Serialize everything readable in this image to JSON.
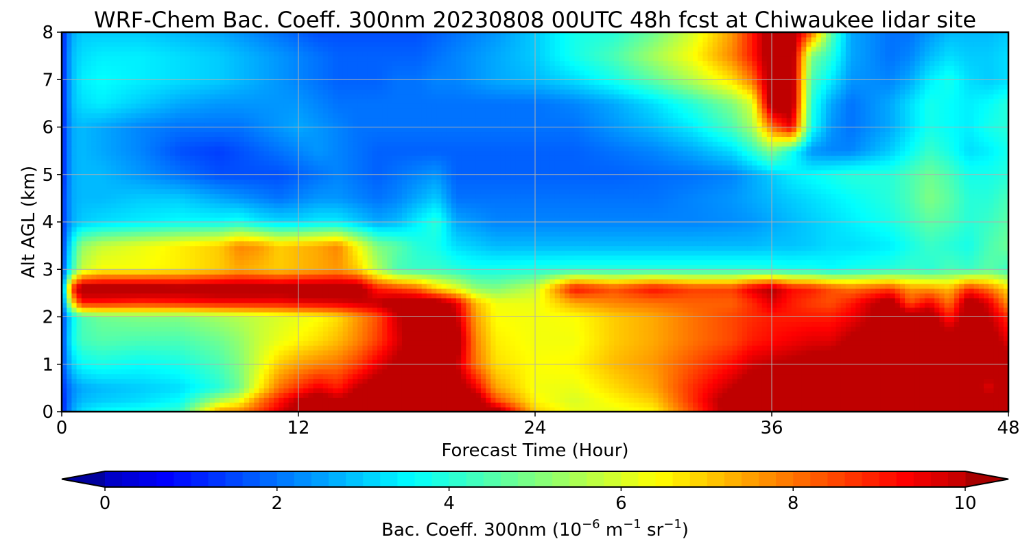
{
  "chart_data": {
    "type": "heatmap",
    "title": "WRF-Chem Bac. Coeff. 300nm  20230808 00UTC 48h fcst at Chiwaukee lidar site",
    "xlabel": "Forecast Time (Hour)",
    "ylabel": "Alt AGL (km)",
    "xlim": [
      0,
      48
    ],
    "ylim": [
      0,
      8
    ],
    "x_ticks": [
      "0",
      "12",
      "24",
      "36",
      "48"
    ],
    "y_ticks": [
      "0",
      "1",
      "2",
      "3",
      "4",
      "5",
      "6",
      "7",
      "8"
    ],
    "grid": true,
    "colormap": "jet",
    "colorbar": {
      "label_main": "Bac. Coeff. 300nm  (10",
      "label_exp1": "−6",
      "label_mid": " m",
      "label_exp2": "−1",
      "label_mid2": " sr",
      "label_exp3": "−1",
      "label_end": ")",
      "range": [
        0,
        10
      ],
      "ticks": [
        "0",
        "2",
        "4",
        "6",
        "8",
        "10"
      ],
      "extend": "both",
      "orientation": "horizontal"
    },
    "x_hours": [
      0,
      0.5,
      1,
      2,
      4,
      6,
      8,
      9,
      10,
      11,
      12,
      13,
      14,
      15,
      16,
      17,
      18,
      19,
      20,
      21,
      22,
      24,
      26,
      28,
      30,
      32,
      34,
      35,
      36,
      37,
      38,
      39,
      40,
      42,
      43,
      44,
      45,
      46,
      47,
      48
    ],
    "y_km": [
      0,
      0.25,
      0.5,
      1,
      1.5,
      2,
      2.3,
      2.6,
      3,
      3.5,
      4,
      4.5,
      5,
      5.5,
      6,
      6.5,
      7,
      7.5,
      8
    ],
    "values_rows_by_altitude": [
      [
        1.0,
        2.5,
        3.2,
        3.6,
        3.8,
        4.2,
        7.6,
        7.8,
        8.6,
        9.6,
        10.6,
        10.6,
        10.5,
        10.6,
        10.6,
        10.6,
        10.6,
        10.6,
        10.6,
        10.6,
        10.6,
        7.0,
        6.2,
        6.2,
        6.5,
        8.5,
        10.6,
        10.6,
        10.6,
        10.6,
        10.6,
        10.6,
        10.6,
        10.6,
        10.6,
        10.6,
        10.6,
        10.6,
        10.6,
        10.6
      ],
      [
        1.0,
        2.3,
        2.8,
        3.0,
        3.2,
        3.6,
        5.5,
        6.2,
        7.8,
        9.0,
        10.0,
        10.6,
        10.0,
        10.6,
        10.6,
        10.6,
        10.6,
        10.6,
        10.6,
        10.6,
        8.5,
        6.5,
        6.0,
        6.5,
        7.0,
        8.8,
        10.6,
        10.6,
        10.6,
        10.6,
        10.6,
        10.6,
        10.6,
        10.6,
        10.6,
        10.6,
        10.6,
        10.6,
        10.6,
        10.6
      ],
      [
        1.2,
        2.2,
        2.6,
        2.8,
        3.0,
        3.2,
        4.0,
        4.8,
        6.5,
        8.0,
        8.8,
        9.5,
        9.0,
        10.0,
        10.6,
        10.6,
        10.6,
        10.6,
        10.6,
        9.5,
        7.5,
        6.3,
        6.2,
        6.8,
        7.4,
        8.8,
        10.0,
        10.6,
        10.6,
        10.6,
        10.6,
        10.6,
        10.6,
        10.6,
        10.6,
        10.6,
        10.6,
        10.6,
        9.5,
        10.6
      ],
      [
        1.5,
        3.0,
        3.6,
        3.8,
        3.6,
        3.8,
        4.4,
        5.0,
        6.0,
        7.0,
        7.5,
        7.8,
        8.0,
        8.6,
        9.5,
        10.2,
        10.6,
        10.6,
        10.0,
        8.0,
        6.8,
        6.4,
        6.5,
        7.2,
        7.6,
        8.4,
        9.2,
        9.8,
        10.0,
        10.2,
        10.4,
        10.6,
        10.6,
        10.6,
        10.6,
        10.6,
        10.6,
        10.6,
        10.6,
        10.6
      ],
      [
        1.4,
        3.6,
        4.3,
        4.5,
        4.4,
        4.4,
        4.8,
        5.2,
        5.8,
        6.2,
        6.5,
        6.8,
        7.2,
        7.8,
        8.6,
        9.6,
        10.6,
        10.6,
        10.6,
        7.8,
        6.6,
        6.3,
        6.3,
        7.0,
        7.4,
        8.0,
        8.5,
        9.0,
        9.2,
        9.4,
        9.6,
        9.6,
        10.2,
        10.6,
        10.6,
        10.6,
        10.6,
        10.6,
        10.6,
        9.5
      ],
      [
        1.4,
        3.4,
        4.4,
        4.8,
        5.0,
        5.0,
        5.4,
        5.6,
        5.8,
        6.0,
        6.2,
        6.4,
        6.8,
        7.6,
        8.4,
        9.8,
        10.6,
        10.6,
        10.0,
        7.5,
        6.4,
        6.3,
        6.4,
        7.0,
        7.4,
        8.0,
        8.5,
        8.8,
        9.0,
        9.0,
        9.0,
        9.0,
        9.4,
        10.6,
        10.6,
        10.6,
        9.0,
        10.6,
        10.0,
        8.8
      ],
      [
        1.6,
        6.5,
        9.0,
        9.0,
        8.8,
        9.0,
        9.2,
        9.2,
        9.2,
        9.2,
        9.4,
        9.5,
        9.6,
        9.8,
        10.0,
        10.6,
        10.6,
        10.6,
        9.6,
        7.2,
        6.3,
        6.2,
        7.4,
        7.8,
        8.0,
        8.2,
        8.2,
        8.8,
        9.6,
        9.0,
        8.6,
        8.4,
        9.0,
        10.6,
        8.4,
        9.4,
        8.0,
        10.6,
        9.6,
        7.6
      ],
      [
        1.8,
        8.5,
        10.6,
        10.6,
        10.6,
        10.4,
        10.6,
        10.6,
        10.6,
        10.5,
        10.6,
        10.6,
        10.6,
        10.6,
        9.0,
        8.6,
        8.2,
        7.0,
        6.2,
        5.2,
        5.0,
        5.8,
        9.2,
        8.4,
        9.2,
        8.6,
        8.6,
        9.6,
        10.2,
        9.2,
        9.0,
        8.4,
        8.0,
        8.6,
        7.6,
        7.6,
        7.2,
        8.8,
        8.0,
        6.8
      ],
      [
        1.4,
        4.0,
        5.8,
        6.4,
        6.4,
        6.6,
        7.0,
        7.4,
        7.2,
        7.0,
        7.2,
        7.4,
        7.6,
        7.0,
        5.6,
        4.4,
        4.2,
        4.2,
        4.0,
        3.8,
        3.8,
        3.9,
        4.0,
        4.0,
        4.0,
        4.0,
        4.0,
        4.0,
        3.9,
        3.8,
        3.8,
        3.6,
        3.8,
        4.0,
        4.2,
        4.0,
        4.4,
        4.2,
        4.6,
        4.2
      ],
      [
        1.2,
        3.6,
        5.2,
        5.8,
        6.2,
        6.6,
        7.0,
        7.8,
        7.6,
        7.0,
        7.2,
        7.4,
        7.8,
        6.4,
        5.0,
        4.6,
        4.0,
        3.8,
        3.2,
        3.0,
        2.8,
        2.8,
        2.8,
        2.8,
        2.8,
        2.8,
        2.8,
        2.8,
        2.9,
        2.9,
        3.0,
        3.2,
        3.2,
        3.4,
        3.8,
        4.2,
        4.0,
        3.8,
        4.4,
        4.8
      ],
      [
        1.2,
        2.6,
        3.0,
        3.2,
        3.4,
        3.6,
        3.6,
        3.8,
        3.4,
        3.2,
        3.2,
        3.4,
        3.4,
        3.0,
        2.6,
        2.8,
        3.4,
        4.0,
        2.6,
        2.4,
        2.2,
        2.2,
        2.2,
        2.2,
        2.2,
        2.2,
        2.3,
        2.4,
        2.6,
        2.8,
        3.0,
        3.2,
        3.4,
        3.8,
        4.2,
        4.6,
        4.4,
        4.0,
        4.2,
        4.6
      ],
      [
        1.2,
        2.6,
        2.8,
        2.8,
        3.0,
        3.0,
        2.6,
        2.4,
        2.2,
        2.0,
        2.2,
        2.4,
        2.4,
        2.2,
        2.0,
        2.2,
        2.6,
        3.0,
        2.0,
        2.0,
        2.0,
        2.0,
        2.0,
        2.0,
        2.0,
        2.2,
        2.4,
        2.6,
        2.8,
        3.0,
        3.2,
        3.4,
        3.6,
        4.0,
        4.4,
        5.0,
        4.6,
        4.0,
        4.0,
        4.4
      ],
      [
        1.0,
        2.6,
        2.8,
        2.8,
        2.4,
        2.0,
        1.6,
        1.6,
        1.6,
        1.6,
        1.8,
        2.0,
        2.2,
        2.0,
        1.8,
        2.0,
        2.2,
        2.4,
        1.8,
        1.8,
        1.8,
        1.8,
        1.8,
        1.8,
        1.9,
        2.0,
        2.2,
        2.6,
        3.0,
        3.4,
        3.6,
        3.8,
        4.0,
        4.0,
        4.4,
        4.8,
        4.4,
        3.8,
        3.8,
        4.0
      ],
      [
        1.0,
        2.6,
        2.8,
        2.6,
        2.2,
        1.6,
        1.4,
        1.6,
        1.8,
        2.0,
        2.2,
        2.4,
        2.2,
        2.0,
        1.8,
        1.8,
        1.8,
        1.8,
        1.8,
        1.8,
        1.8,
        1.8,
        1.8,
        2.0,
        2.2,
        2.6,
        3.2,
        4.0,
        5.0,
        3.8,
        2.4,
        2.2,
        2.2,
        3.0,
        3.6,
        4.2,
        3.8,
        3.2,
        3.4,
        3.8
      ],
      [
        1.0,
        2.6,
        2.8,
        2.6,
        2.2,
        2.0,
        2.0,
        2.0,
        2.2,
        2.4,
        2.6,
        2.4,
        2.2,
        2.0,
        2.0,
        2.0,
        2.0,
        2.0,
        2.0,
        2.0,
        2.0,
        2.0,
        2.0,
        2.4,
        2.8,
        3.4,
        4.4,
        5.4,
        8.0,
        9.5,
        3.8,
        2.4,
        2.0,
        2.6,
        3.2,
        3.8,
        3.6,
        3.4,
        3.8,
        4.0
      ],
      [
        1.0,
        2.8,
        3.2,
        3.4,
        3.0,
        2.6,
        2.4,
        2.4,
        2.4,
        2.4,
        2.4,
        2.2,
        2.0,
        2.0,
        2.0,
        2.0,
        2.0,
        2.0,
        2.0,
        2.0,
        2.0,
        2.0,
        2.2,
        2.6,
        3.2,
        4.0,
        5.0,
        6.0,
        10.6,
        10.6,
        4.0,
        2.6,
        2.0,
        2.6,
        3.2,
        3.8,
        3.6,
        3.4,
        3.6,
        4.0
      ],
      [
        1.0,
        2.8,
        3.4,
        3.6,
        3.4,
        3.2,
        3.0,
        2.8,
        2.6,
        2.4,
        2.2,
        2.0,
        1.8,
        1.8,
        1.8,
        2.0,
        2.0,
        2.2,
        2.2,
        2.4,
        2.6,
        2.8,
        3.2,
        3.8,
        4.6,
        5.6,
        6.8,
        8.0,
        10.6,
        10.6,
        4.4,
        3.4,
        2.4,
        2.2,
        2.6,
        3.4,
        3.8,
        3.2,
        3.0,
        3.2
      ],
      [
        1.0,
        2.8,
        3.2,
        3.4,
        3.4,
        3.2,
        3.0,
        2.8,
        2.6,
        2.4,
        2.2,
        2.0,
        1.8,
        1.8,
        1.8,
        1.8,
        1.8,
        2.0,
        2.2,
        2.4,
        2.6,
        3.0,
        3.8,
        4.4,
        5.4,
        6.4,
        7.8,
        9.0,
        10.6,
        10.6,
        5.0,
        4.0,
        2.6,
        2.0,
        2.2,
        2.8,
        3.2,
        3.0,
        3.0,
        3.2
      ],
      [
        1.0,
        2.6,
        3.0,
        3.0,
        3.0,
        2.8,
        2.6,
        2.4,
        2.2,
        2.0,
        1.8,
        1.6,
        1.6,
        1.6,
        1.6,
        1.6,
        1.6,
        1.8,
        2.0,
        2.2,
        2.4,
        3.0,
        3.8,
        4.0,
        4.8,
        6.0,
        7.6,
        9.0,
        10.6,
        10.6,
        8.2,
        4.6,
        2.6,
        2.0,
        2.0,
        2.4,
        2.8,
        2.8,
        2.8,
        3.0
      ]
    ]
  }
}
